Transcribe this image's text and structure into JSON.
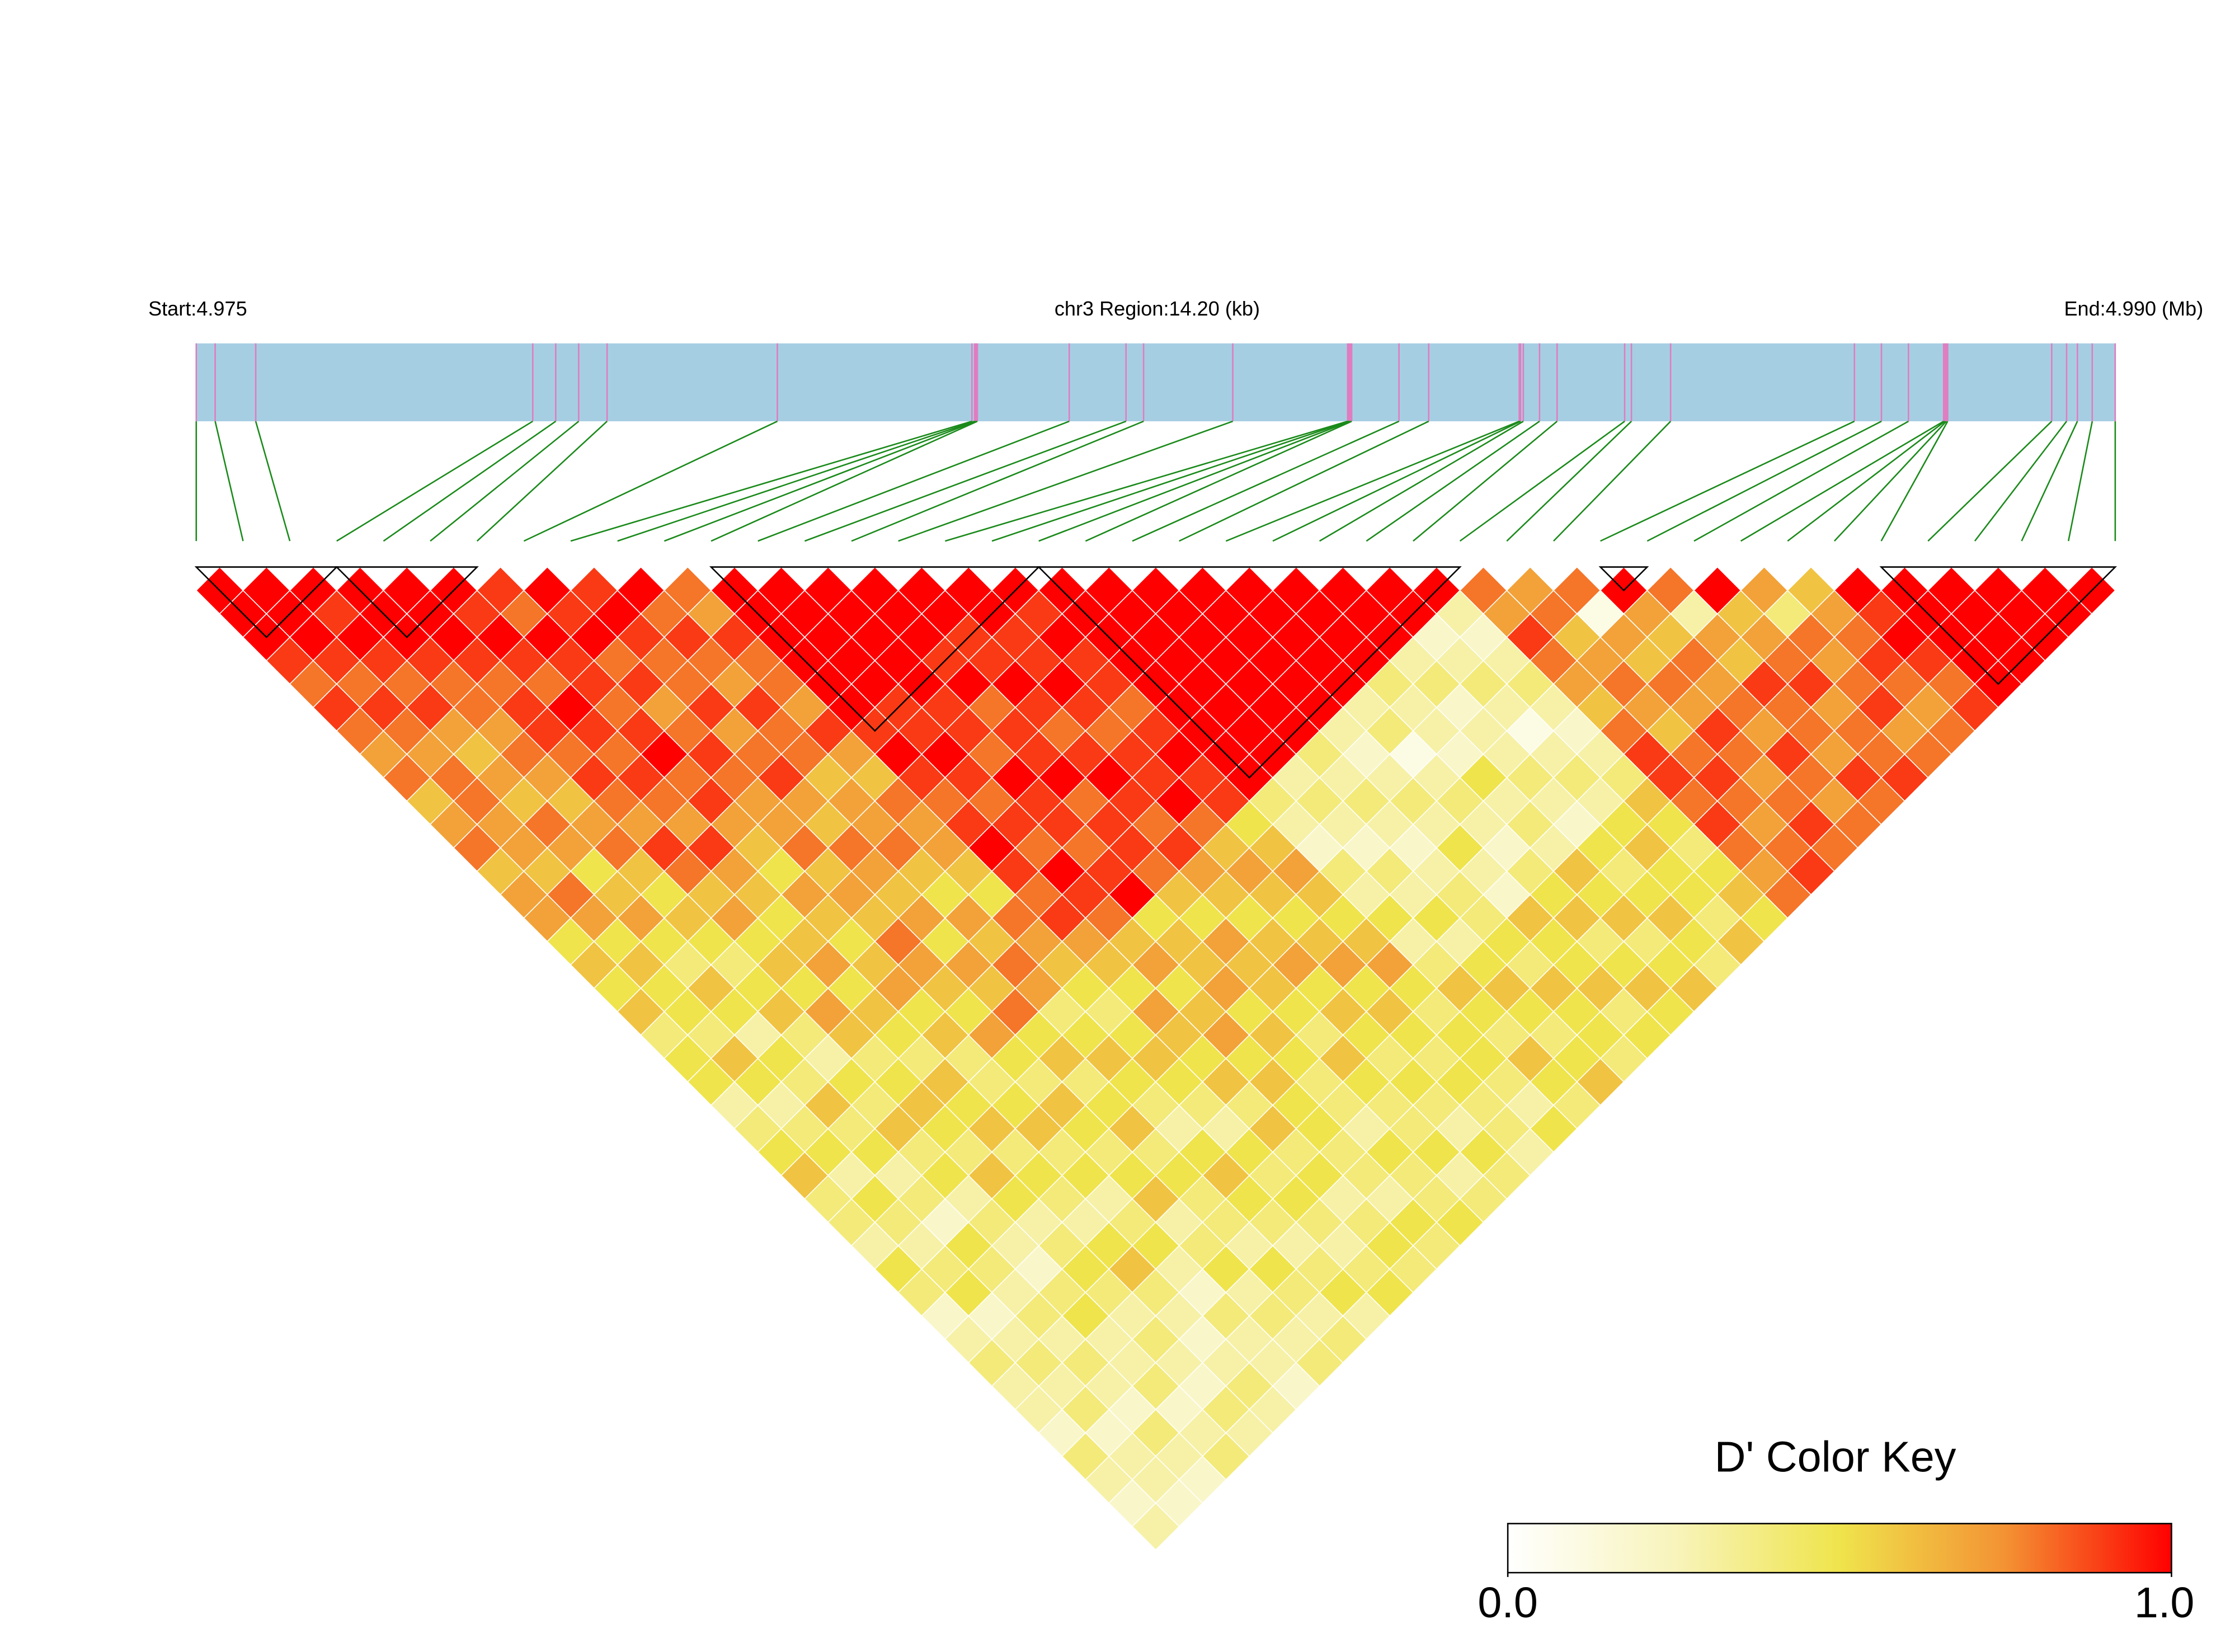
{
  "chart_data": {
    "type": "ld-heatmap",
    "start_label": "Start:4.975",
    "region_label": "chr3 Region:14.20 (kb)",
    "end_label": "End:4.990 (Mb)",
    "xlim": [
      0,
      14.2
    ],
    "snp_positions": [
      0.0,
      0.14,
      0.44,
      2.49,
      2.66,
      2.83,
      3.04,
      4.3,
      5.74,
      5.76,
      5.77,
      5.78,
      6.46,
      6.88,
      7.01,
      7.67,
      8.52,
      8.53,
      8.54,
      8.55,
      8.9,
      9.12,
      9.79,
      9.8,
      9.82,
      9.94,
      10.07,
      10.57,
      10.62,
      10.91,
      12.27,
      12.47,
      12.67,
      12.93,
      12.94,
      12.95,
      12.96,
      13.73,
      13.84,
      13.92,
      14.03,
      14.2
    ],
    "bar_color": "#a6cee3",
    "snp_line_color": "#e07cc0",
    "connector_color": "#1a8a1a",
    "block_color": "#000000",
    "blocks": [
      [
        0,
        3
      ],
      [
        3,
        6
      ],
      [
        11,
        18
      ],
      [
        18,
        27
      ],
      [
        30,
        31
      ],
      [
        36,
        41
      ]
    ],
    "dprime": [
      [
        1,
        1,
        1,
        0.9,
        0.8,
        0.9,
        0.8,
        0.7,
        0.8,
        0.6,
        0.7,
        0.8,
        0.6,
        0.7,
        0.7,
        0.5,
        0.6,
        0.5,
        0.6,
        0.4,
        0.5,
        0.5,
        0.3,
        0.4,
        0.5,
        0.6,
        0.4,
        0.4,
        0.3,
        0.5,
        0.4,
        0.2,
        0.3,
        0.4,
        0.3,
        0.3,
        0.2,
        0.4,
        0.3,
        0.2,
        0.3
      ],
      [
        1,
        1,
        1,
        0.9,
        0.8,
        0.9,
        0.8,
        0.7,
        0.8,
        0.8,
        0.7,
        0.7,
        0.6,
        0.8,
        0.7,
        0.5,
        0.6,
        0.5,
        0.5,
        0.4,
        0.6,
        0.5,
        0.3,
        0.4,
        0.5,
        0.3,
        0.5,
        0.4,
        0.3,
        0.4,
        0.5,
        0.2,
        0.3,
        0.4,
        0.3,
        0.4,
        0.2,
        0.3,
        0.3,
        0.2
      ],
      [
        1,
        0.9,
        1,
        0.9,
        0.8,
        0.9,
        0.7,
        0.6,
        0.7,
        0.6,
        0.8,
        0.7,
        0.5,
        0.6,
        0.7,
        0.5,
        0.4,
        0.6,
        0.5,
        0.3,
        0.5,
        0.4,
        0.6,
        0.4,
        0.5,
        0.3,
        0.4,
        0.2,
        0.5,
        0.4,
        0.3,
        0.4,
        0.3,
        0.4,
        0.3,
        0.2,
        0.4,
        0.3,
        0.2
      ],
      [
        1,
        1,
        1,
        0.9,
        0.8,
        0.8,
        0.7,
        0.8,
        0.7,
        0.6,
        0.7,
        0.8,
        0.6,
        0.5,
        0.6,
        0.5,
        0.4,
        0.5,
        0.6,
        0.4,
        0.3,
        0.5,
        0.4,
        0.6,
        0.4,
        0.5,
        0.3,
        0.4,
        0.3,
        0.2,
        0.4,
        0.5,
        0.3,
        0.3,
        0.4,
        0.2,
        0.3,
        0.4
      ],
      [
        1,
        1,
        1,
        0.9,
        0.8,
        0.9,
        0.9,
        0.8,
        0.9,
        0.8,
        0.7,
        0.9,
        0.8,
        0.6,
        0.7,
        0.5,
        0.6,
        0.5,
        0.7,
        0.6,
        0.4,
        0.5,
        0.6,
        0.5,
        0.4,
        0.6,
        0.5,
        0.3,
        0.4,
        0.5,
        0.4,
        0.3,
        0.4,
        0.3,
        0.2,
        0.4,
        0.3
      ],
      [
        1,
        0.9,
        1,
        0.9,
        0.8,
        1,
        0.9,
        0.8,
        0.9,
        0.8,
        0.7,
        0.9,
        0.7,
        0.6,
        0.5,
        0.6,
        0.7,
        0.5,
        0.6,
        0.5,
        0.4,
        0.6,
        0.5,
        0.6,
        0.4,
        0.5,
        0.4,
        0.3,
        0.5,
        0.6,
        0.4,
        0.3,
        0.2,
        0.3,
        0.4,
        0.3
      ],
      [
        0.9,
        0.8,
        1,
        0.9,
        0.9,
        0.8,
        0.9,
        1,
        0.8,
        0.9,
        0.7,
        0.6,
        0.5,
        0.7,
        0.6,
        0.5,
        0.6,
        0.7,
        0.5,
        0.6,
        0.4,
        0.4,
        0.5,
        0.6,
        0.4,
        0.5,
        0.3,
        0.4,
        0.5,
        0.3,
        0.2,
        0.4,
        0.3,
        0.3,
        0.2
      ],
      [
        1,
        0.9,
        1,
        0.8,
        0.9,
        0.7,
        0.8,
        0.9,
        0.8,
        0.7,
        0.7,
        0.8,
        0.6,
        0.7,
        0.6,
        0.8,
        0.7,
        0.6,
        0.5,
        0.7,
        0.5,
        0.4,
        0.6,
        0.5,
        0.4,
        0.5,
        0.6,
        0.3,
        0.4,
        0.5,
        0.3,
        0.4,
        0.3,
        0.4
      ],
      [
        0.9,
        1,
        0.9,
        0.8,
        0.8,
        0.9,
        0.7,
        0.8,
        0.9,
        0.7,
        0.6,
        0.8,
        0.7,
        0.6,
        0.7,
        0.5,
        0.7,
        0.6,
        0.8,
        0.5,
        0.6,
        0.4,
        0.5,
        0.6,
        0.4,
        0.5,
        0.4,
        0.4,
        0.3,
        0.5,
        0.4,
        0.3,
        0.4
      ],
      [
        1,
        0.8,
        0.9,
        0.8,
        0.7,
        0.9,
        0.8,
        0.8,
        0.6,
        0.7,
        0.7,
        0.8,
        0.6,
        0.5,
        0.7,
        0.6,
        0.8,
        0.7,
        0.4,
        0.5,
        0.6,
        0.5,
        0.4,
        0.3,
        0.5,
        0.6,
        0.5,
        0.4,
        0.3,
        0.4,
        0.5,
        0.3
      ],
      [
        0.8,
        0.7,
        0.9,
        0.8,
        0.8,
        0.7,
        0.9,
        0.7,
        0.6,
        0.8,
        0.7,
        0.7,
        0.6,
        0.5,
        0.8,
        0.7,
        0.6,
        0.5,
        0.4,
        0.5,
        0.6,
        0.5,
        0.4,
        0.3,
        0.5,
        0.4,
        0.5,
        0.4,
        0.3,
        0.4,
        0.5
      ],
      [
        1,
        1,
        1,
        1,
        1,
        1,
        0.9,
        1,
        0.9,
        0.8,
        0.9,
        1,
        0.9,
        0.8,
        0.9,
        0.7,
        0.6,
        0.5,
        0.7,
        0.6,
        0.5,
        0.6,
        0.4,
        0.6,
        0.4,
        0.5,
        0.3,
        0.4,
        0.5,
        0.4
      ],
      [
        1,
        1,
        1,
        1,
        1,
        0.9,
        0.9,
        1,
        0.9,
        0.8,
        0.9,
        0.8,
        1,
        0.9,
        0.8,
        0.6,
        0.7,
        0.5,
        0.6,
        0.7,
        0.5,
        0.6,
        0.5,
        0.5,
        0.4,
        0.4,
        0.3,
        0.5,
        0.4
      ],
      [
        1,
        1,
        1,
        1,
        1,
        0.9,
        0.9,
        0.8,
        1,
        0.9,
        0.9,
        0.8,
        0.9,
        1,
        0.5,
        0.6,
        0.6,
        0.7,
        0.5,
        0.6,
        0.5,
        0.4,
        0.4,
        0.3,
        0.5,
        0.4,
        0.4,
        0.5
      ],
      [
        1,
        1,
        1,
        0.9,
        1,
        0.8,
        0.9,
        0.9,
        1,
        0.8,
        0.9,
        0.9,
        0.8,
        0.6,
        0.5,
        0.7,
        0.6,
        0.6,
        0.5,
        0.4,
        0.6,
        0.5,
        0.4,
        0.4,
        0.5,
        0.3,
        0.4
      ],
      [
        1,
        1,
        0.9,
        0.9,
        1,
        0.9,
        0.8,
        0.9,
        1,
        0.9,
        0.8,
        0.9,
        0.7,
        0.6,
        0.5,
        0.6,
        0.7,
        0.5,
        0.6,
        0.5,
        0.4,
        0.5,
        0.4,
        0.3,
        0.5,
        0.4
      ],
      [
        1,
        1,
        0.9,
        0.9,
        1,
        0.9,
        0.8,
        0.9,
        0.9,
        1,
        0.8,
        0.6,
        0.7,
        0.6,
        0.5,
        0.6,
        0.7,
        0.5,
        0.6,
        0.5,
        0.4,
        0.5,
        0.4,
        0.4,
        0.3
      ],
      [
        1,
        0.9,
        1,
        0.9,
        0.9,
        0.8,
        0.9,
        1,
        0.9,
        0.9,
        0.5,
        0.6,
        0.7,
        0.6,
        0.5,
        0.6,
        0.7,
        0.5,
        0.4,
        0.5,
        0.5,
        0.4,
        0.3,
        0.5
      ],
      [
        1,
        1,
        1,
        1,
        1,
        1,
        1,
        1,
        1,
        0.4,
        0.3,
        0.2,
        0.4,
        0.3,
        0.5,
        0.3,
        0.4,
        0.6,
        0.5,
        0.4,
        0.6,
        0.5,
        0.4
      ],
      [
        1,
        1,
        1,
        1,
        1,
        1,
        1,
        1,
        0.3,
        0.4,
        0.3,
        0.2,
        0.4,
        0.3,
        0.5,
        0.3,
        0.5,
        0.6,
        0.5,
        0.4,
        0.5,
        0.6
      ],
      [
        1,
        1,
        1,
        1,
        1,
        1,
        1,
        0.4,
        0.3,
        0.4,
        0.3,
        0.2,
        0.3,
        0.4,
        0.4,
        0.5,
        0.4,
        0.6,
        0.5,
        0.5,
        0.4
      ],
      [
        1,
        1,
        1,
        1,
        1,
        1,
        0.3,
        0.2,
        0.3,
        0.4,
        0.3,
        0.5,
        0.3,
        0.2,
        0.6,
        0.5,
        0.5,
        0.6,
        0.4,
        0.5
      ],
      [
        1,
        1,
        1,
        1,
        1,
        0.3,
        0.4,
        0.1,
        0.3,
        0.4,
        0.3,
        0.2,
        0.4,
        0.5,
        0.6,
        0.4,
        0.5,
        0.6,
        0.5
      ],
      [
        1,
        1,
        1,
        1,
        0.4,
        0.3,
        0.3,
        0.2,
        0.5,
        0.3,
        0.4,
        0.3,
        0.6,
        0.5,
        0.6,
        0.4,
        0.5,
        0.6
      ],
      [
        1,
        1,
        1,
        0.3,
        0.4,
        0.2,
        0.3,
        0.3,
        0.4,
        0.3,
        0.2,
        0.5,
        0.4,
        0.5,
        0.6,
        0.5,
        0.4
      ],
      [
        1,
        1,
        0.2,
        0.3,
        0.4,
        0.3,
        0.1,
        0.3,
        0.4,
        0.3,
        0.5,
        0.6,
        0.5,
        0.5,
        0.4,
        0.6
      ],
      [
        1,
        0.3,
        0.2,
        0.3,
        0.4,
        0.3,
        0.2,
        0.3,
        0.4,
        0.6,
        0.5,
        0.4,
        0.5,
        0.6,
        0.5
      ],
      [
        0.8,
        0.7,
        0.9,
        0.8,
        0.7,
        0.6,
        0.8,
        0.9,
        0.9,
        0.8,
        0.9,
        0.8,
        0.7,
        0.8
      ],
      [
        0.7,
        0.8,
        0.6,
        0.7,
        0.8,
        0.7,
        0.6,
        0.8,
        0.9,
        0.8,
        0.7,
        0.8,
        0.9
      ],
      [
        0.8,
        0.1,
        0.7,
        0.6,
        0.8,
        0.7,
        0.9,
        0.8,
        0.7,
        0.8,
        0.9,
        0.8
      ],
      [
        1,
        0.7,
        0.6,
        0.8,
        0.7,
        0.8,
        0.7,
        0.9,
        0.8,
        0.7,
        0.8
      ],
      [
        0.8,
        0.3,
        0.7,
        0.6,
        0.9,
        0.8,
        0.8,
        0.7,
        0.9,
        0.8
      ],
      [
        1,
        0.6,
        0.7,
        0.8,
        0.9,
        0.7,
        0.8,
        0.8,
        0.9
      ],
      [
        0.7,
        0.4,
        0.8,
        0.7,
        0.8,
        0.9,
        0.7,
        0.8
      ],
      [
        0.6,
        0.7,
        0.8,
        0.9,
        0.8,
        0.7,
        0.8
      ],
      [
        1,
        0.9,
        1,
        0.9,
        0.8,
        0.9
      ],
      [
        1,
        1,
        1,
        1,
        1
      ],
      [
        1,
        1,
        1,
        1
      ],
      [
        1,
        1,
        1
      ],
      [
        1,
        1
      ],
      [
        1
      ]
    ],
    "color_key": {
      "title": "D' Color Key",
      "zlim": [
        0,
        1
      ],
      "zticks": [
        {
          "value": 0,
          "label": "0.0"
        },
        {
          "value": 1,
          "label": "1.0"
        }
      ],
      "colors": [
        "#ffffff",
        "#f8f4bc",
        "#efe44c",
        "#f39233",
        "#ff0000"
      ]
    }
  }
}
